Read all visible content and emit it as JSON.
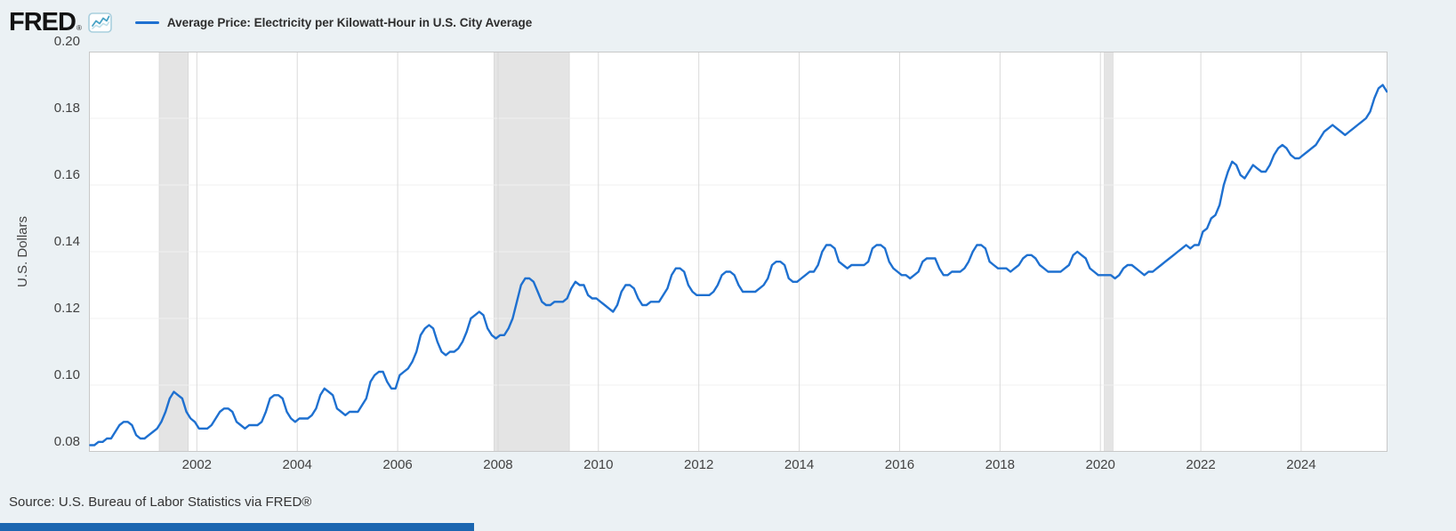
{
  "header": {
    "logo_text": "FRED",
    "logo_registered": "®",
    "legend_label": "Average Price: Electricity per Kilowatt-Hour in U.S. City Average"
  },
  "footer": {
    "source": "Source: U.S. Bureau of Labor Statistics via FRED®",
    "bar_color": "#1b66b0"
  },
  "chart_data": {
    "type": "line",
    "title": "Average Price: Electricity per Kilowatt-Hour in U.S. City Average",
    "xlabel": "",
    "ylabel": "U.S. Dollars",
    "frequency": "monthly",
    "start": "1999-11",
    "end": "2025-09",
    "ylim": [
      0.08,
      0.2
    ],
    "yticks": [
      0.2,
      0.18,
      0.16,
      0.14,
      0.12,
      0.1,
      0.08
    ],
    "xticks": [
      2002,
      2004,
      2006,
      2008,
      2010,
      2012,
      2014,
      2016,
      2018,
      2020,
      2022,
      2024
    ],
    "x_domain": [
      1999.85,
      2025.72
    ],
    "line_color": "#1e70d0",
    "recession_color": "#e4e4e4",
    "plot_background": "#ffffff",
    "page_background": "#ebf1f4",
    "legend_position": "top-left",
    "grid": {
      "vertical_year_lines": true,
      "horizontal_lines": "faint"
    },
    "recessions": [
      [
        2001.25,
        2001.83
      ],
      [
        2007.92,
        2009.42
      ],
      [
        2020.08,
        2020.25
      ]
    ],
    "values": [
      0.082,
      0.082,
      0.083,
      0.083,
      0.084,
      0.084,
      0.086,
      0.088,
      0.089,
      0.089,
      0.088,
      0.085,
      0.084,
      0.084,
      0.085,
      0.086,
      0.087,
      0.089,
      0.092,
      0.096,
      0.098,
      0.097,
      0.096,
      0.092,
      0.09,
      0.089,
      0.087,
      0.087,
      0.087,
      0.088,
      0.09,
      0.092,
      0.093,
      0.093,
      0.092,
      0.089,
      0.088,
      0.087,
      0.088,
      0.088,
      0.088,
      0.089,
      0.092,
      0.096,
      0.097,
      0.097,
      0.096,
      0.092,
      0.09,
      0.089,
      0.09,
      0.09,
      0.09,
      0.091,
      0.093,
      0.097,
      0.099,
      0.098,
      0.097,
      0.093,
      0.092,
      0.091,
      0.092,
      0.092,
      0.092,
      0.094,
      0.096,
      0.101,
      0.103,
      0.104,
      0.104,
      0.101,
      0.099,
      0.099,
      0.103,
      0.104,
      0.105,
      0.107,
      0.11,
      0.115,
      0.117,
      0.118,
      0.117,
      0.113,
      0.11,
      0.109,
      0.11,
      0.11,
      0.111,
      0.113,
      0.116,
      0.12,
      0.121,
      0.122,
      0.121,
      0.117,
      0.115,
      0.114,
      0.115,
      0.115,
      0.117,
      0.12,
      0.125,
      0.13,
      0.132,
      0.132,
      0.131,
      0.128,
      0.125,
      0.124,
      0.124,
      0.125,
      0.125,
      0.125,
      0.126,
      0.129,
      0.131,
      0.13,
      0.13,
      0.127,
      0.126,
      0.126,
      0.125,
      0.124,
      0.123,
      0.122,
      0.124,
      0.128,
      0.13,
      0.13,
      0.129,
      0.126,
      0.124,
      0.124,
      0.125,
      0.125,
      0.125,
      0.127,
      0.129,
      0.133,
      0.135,
      0.135,
      0.134,
      0.13,
      0.128,
      0.127,
      0.127,
      0.127,
      0.127,
      0.128,
      0.13,
      0.133,
      0.134,
      0.134,
      0.133,
      0.13,
      0.128,
      0.128,
      0.128,
      0.128,
      0.129,
      0.13,
      0.132,
      0.136,
      0.137,
      0.137,
      0.136,
      0.132,
      0.131,
      0.131,
      0.132,
      0.133,
      0.134,
      0.134,
      0.136,
      0.14,
      0.142,
      0.142,
      0.141,
      0.137,
      0.136,
      0.135,
      0.136,
      0.136,
      0.136,
      0.136,
      0.137,
      0.141,
      0.142,
      0.142,
      0.141,
      0.137,
      0.135,
      0.134,
      0.133,
      0.133,
      0.132,
      0.133,
      0.134,
      0.137,
      0.138,
      0.138,
      0.138,
      0.135,
      0.133,
      0.133,
      0.134,
      0.134,
      0.134,
      0.135,
      0.137,
      0.14,
      0.142,
      0.142,
      0.141,
      0.137,
      0.136,
      0.135,
      0.135,
      0.135,
      0.134,
      0.135,
      0.136,
      0.138,
      0.139,
      0.139,
      0.138,
      0.136,
      0.135,
      0.134,
      0.134,
      0.134,
      0.134,
      0.135,
      0.136,
      0.139,
      0.14,
      0.139,
      0.138,
      0.135,
      0.134,
      0.133,
      0.133,
      0.133,
      0.133,
      0.132,
      0.133,
      0.135,
      0.136,
      0.136,
      0.135,
      0.134,
      0.133,
      0.134,
      0.134,
      0.135,
      0.136,
      0.137,
      0.138,
      0.139,
      0.14,
      0.141,
      0.142,
      0.141,
      0.142,
      0.142,
      0.146,
      0.147,
      0.15,
      0.151,
      0.154,
      0.16,
      0.164,
      0.167,
      0.166,
      0.163,
      0.162,
      0.164,
      0.166,
      0.165,
      0.164,
      0.164,
      0.166,
      0.169,
      0.171,
      0.172,
      0.171,
      0.169,
      0.168,
      0.168,
      0.169,
      0.17,
      0.171,
      0.172,
      0.174,
      0.176,
      0.177,
      0.178,
      0.177,
      0.176,
      0.175,
      0.176,
      0.177,
      0.178,
      0.179,
      0.18,
      0.182,
      0.186,
      0.189,
      0.19,
      0.188
    ]
  }
}
